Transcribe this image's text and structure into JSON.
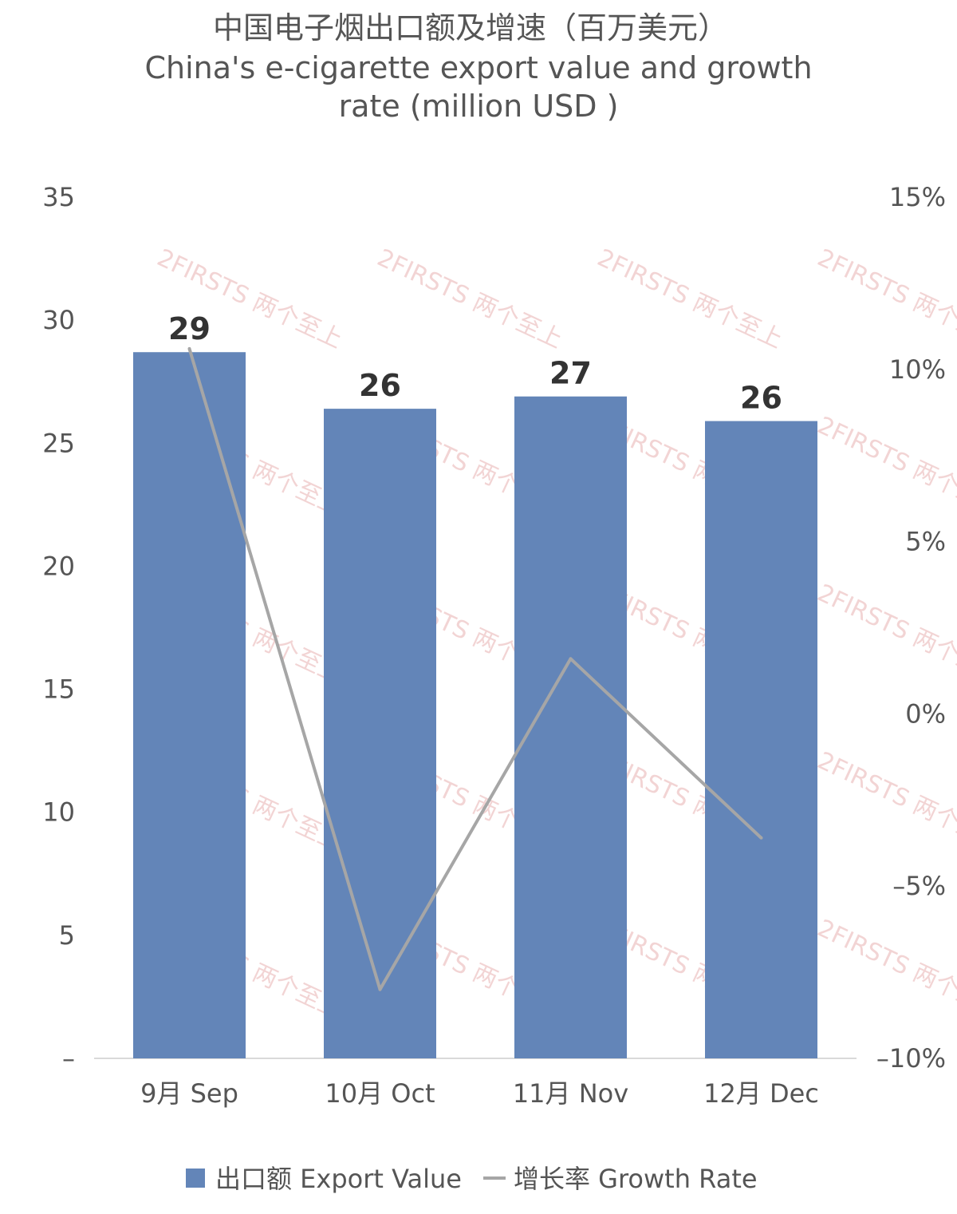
{
  "chart_data": {
    "type": "bar",
    "title": [
      "中国电子烟出口额及增速（百万美元）",
      "China's e-cigarette export value and growth",
      "rate (million USD )"
    ],
    "categories": [
      "9月 Sep",
      "10月 Oct",
      "11月 Nov",
      "12月 Dec"
    ],
    "series": [
      {
        "name": "出口额 Export Value",
        "type": "bar",
        "axis": "left",
        "values": [
          28.7,
          26.4,
          26.9,
          25.9
        ],
        "labels": [
          "29",
          "26",
          "27",
          "26"
        ],
        "color": "#6385b8"
      },
      {
        "name": "增长率 Growth Rate",
        "type": "line",
        "axis": "right",
        "values": [
          10.6,
          -8.0,
          1.6,
          -3.6
        ],
        "color": "#a6a6a6"
      }
    ],
    "y_left": {
      "ylim": [
        0,
        35
      ],
      "ticks": [
        0,
        5,
        10,
        15,
        20,
        25,
        30,
        35
      ],
      "tick_labels": [
        "–",
        "5",
        "10",
        "15",
        "20",
        "25",
        "30",
        "35"
      ]
    },
    "y_right": {
      "ylim": [
        -10,
        15
      ],
      "ticks": [
        -10,
        -5,
        0,
        5,
        10,
        15
      ],
      "tick_labels": [
        "–10%",
        "–5%",
        "0%",
        "5%",
        "10%",
        "15%"
      ]
    },
    "grid": false,
    "legend_position": "bottom"
  },
  "watermark": {
    "text": "2FIRSTS 两个至上",
    "color": "#e9b2b2"
  }
}
